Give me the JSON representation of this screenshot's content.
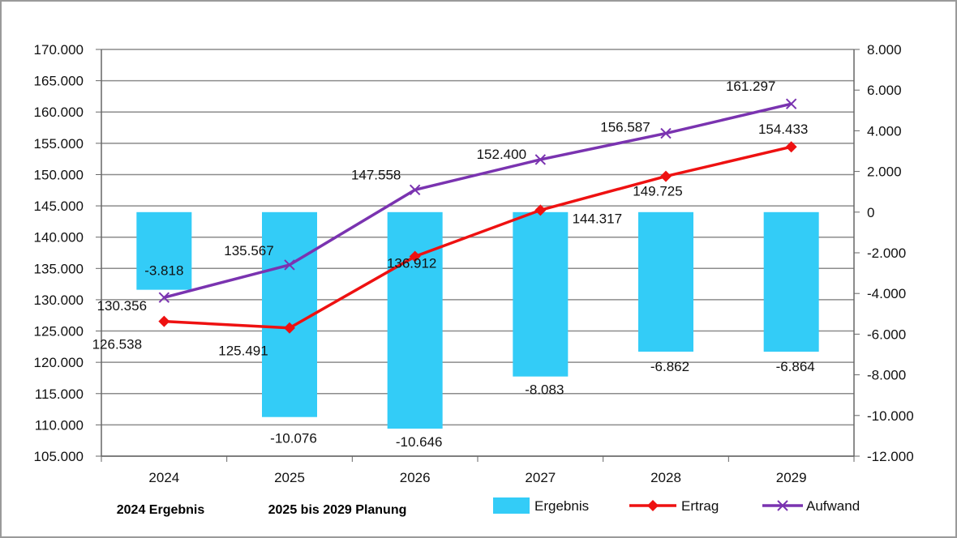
{
  "chart_data": {
    "type": "bar+line",
    "categories": [
      "2024",
      "2025",
      "2026",
      "2027",
      "2028",
      "2029"
    ],
    "series": [
      {
        "name": "Ergebnis",
        "type": "bar",
        "axis": "right",
        "values": [
          -3818,
          -10076,
          -10646,
          -8083,
          -6862,
          -6864
        ],
        "labels": [
          "-3.818",
          "-10.076",
          "-10.646",
          "-8.083",
          "-6.862",
          "-6.864"
        ]
      },
      {
        "name": "Ertrag",
        "type": "line",
        "axis": "left",
        "marker": "diamond",
        "values": [
          126538,
          125491,
          136912,
          144317,
          149725,
          154433
        ],
        "labels": [
          "126.538",
          "125.491",
          "136.912",
          "144.317",
          "149.725",
          "154.433"
        ]
      },
      {
        "name": "Aufwand",
        "type": "line",
        "axis": "left",
        "marker": "x",
        "values": [
          130356,
          135567,
          147558,
          152400,
          156587,
          161297
        ],
        "labels": [
          "130.356",
          "135.567",
          "147.558",
          "152.400",
          "156.587",
          "161.297"
        ]
      }
    ],
    "y_left": {
      "ylim": [
        105000,
        170000
      ],
      "ticks": [
        "105.000",
        "110.000",
        "115.000",
        "120.000",
        "125.000",
        "130.000",
        "135.000",
        "140.000",
        "145.000",
        "150.000",
        "155.000",
        "160.000",
        "165.000",
        "170.000"
      ]
    },
    "y_right": {
      "ylim": [
        -12000,
        8000
      ],
      "ticks": [
        "-12.000",
        "-10.000",
        "-8.000",
        "-6.000",
        "-4.000",
        "-2.000",
        "0",
        "2.000",
        "4.000",
        "6.000",
        "8.000"
      ]
    },
    "grid": true,
    "legend": "bottom-right",
    "colors": {
      "Ergebnis": "#33ccf7",
      "Ertrag": "#ee1111",
      "Aufwand": "#7a33b0"
    }
  },
  "notes": [
    "2024 Ergebnis",
    "2025 bis 2029 Planung"
  ]
}
